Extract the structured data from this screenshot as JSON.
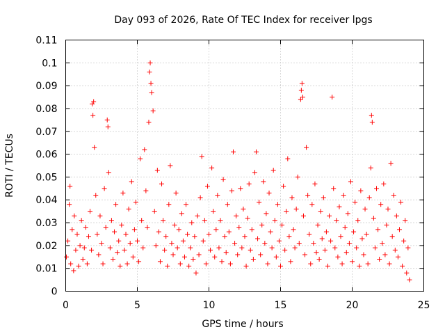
{
  "chart_data": {
    "type": "scatter",
    "title": "Day 093 of 2026, Rate Of TEC Index for receiver lpgs",
    "xlabel": "GPS time / hours",
    "ylabel": "ROTI / TECUs",
    "xlim": [
      0,
      25
    ],
    "ylim": [
      0,
      0.11
    ],
    "x_ticks": [
      {
        "value": 0,
        "label": "0"
      },
      {
        "value": 5,
        "label": "5"
      },
      {
        "value": 10,
        "label": "10"
      },
      {
        "value": 15,
        "label": "15"
      },
      {
        "value": 20,
        "label": "20"
      },
      {
        "value": 25,
        "label": "25"
      }
    ],
    "y_ticks": [
      {
        "value": 0,
        "label": "0"
      },
      {
        "value": 0.01,
        "label": "0.01"
      },
      {
        "value": 0.02,
        "label": "0.02"
      },
      {
        "value": 0.03,
        "label": "0.03"
      },
      {
        "value": 0.04,
        "label": "0.04"
      },
      {
        "value": 0.05,
        "label": "0.05"
      },
      {
        "value": 0.06,
        "label": "0.06"
      },
      {
        "value": 0.07,
        "label": "0.07"
      },
      {
        "value": 0.08,
        "label": "0.08"
      },
      {
        "value": 0.09,
        "label": "0.09"
      },
      {
        "value": 0.1,
        "label": "0.1"
      },
      {
        "value": 0.11,
        "label": "0.11"
      }
    ],
    "grid": true,
    "marker": "+",
    "color": "#ff0000",
    "series": [
      {
        "name": "ROTI",
        "points": [
          [
            0.05,
            0.015
          ],
          [
            0.15,
            0.022
          ],
          [
            0.25,
            0.038
          ],
          [
            0.3,
            0.046
          ],
          [
            0.35,
            0.012
          ],
          [
            0.45,
            0.027
          ],
          [
            0.55,
            0.009
          ],
          [
            0.6,
            0.033
          ],
          [
            0.7,
            0.018
          ],
          [
            0.8,
            0.025
          ],
          [
            0.9,
            0.011
          ],
          [
            1.0,
            0.02
          ],
          [
            1.1,
            0.031
          ],
          [
            1.2,
            0.014
          ],
          [
            1.3,
            0.019
          ],
          [
            1.4,
            0.028
          ],
          [
            1.5,
            0.012
          ],
          [
            1.6,
            0.024
          ],
          [
            1.7,
            0.035
          ],
          [
            1.8,
            0.018
          ],
          [
            1.85,
            0.082
          ],
          [
            1.9,
            0.077
          ],
          [
            1.95,
            0.083
          ],
          [
            2.0,
            0.063
          ],
          [
            2.1,
            0.042
          ],
          [
            2.2,
            0.025
          ],
          [
            2.3,
            0.016
          ],
          [
            2.4,
            0.033
          ],
          [
            2.5,
            0.021
          ],
          [
            2.6,
            0.012
          ],
          [
            2.7,
            0.045
          ],
          [
            2.8,
            0.028
          ],
          [
            2.9,
            0.075
          ],
          [
            2.95,
            0.072
          ],
          [
            3.0,
            0.052
          ],
          [
            3.1,
            0.019
          ],
          [
            3.2,
            0.031
          ],
          [
            3.3,
            0.014
          ],
          [
            3.4,
            0.026
          ],
          [
            3.5,
            0.038
          ],
          [
            3.6,
            0.017
          ],
          [
            3.7,
            0.022
          ],
          [
            3.8,
            0.011
          ],
          [
            3.9,
            0.029
          ],
          [
            4.0,
            0.043
          ],
          [
            4.1,
            0.018
          ],
          [
            4.2,
            0.025
          ],
          [
            4.3,
            0.012
          ],
          [
            4.4,
            0.036
          ],
          [
            4.5,
            0.021
          ],
          [
            4.6,
            0.048
          ],
          [
            4.7,
            0.015
          ],
          [
            4.8,
            0.027
          ],
          [
            4.9,
            0.039
          ],
          [
            5.0,
            0.022
          ],
          [
            5.1,
            0.013
          ],
          [
            5.2,
            0.058
          ],
          [
            5.3,
            0.031
          ],
          [
            5.4,
            0.019
          ],
          [
            5.5,
            0.062
          ],
          [
            5.6,
            0.044
          ],
          [
            5.7,
            0.028
          ],
          [
            5.8,
            0.074
          ],
          [
            5.85,
            0.096
          ],
          [
            5.9,
            0.1
          ],
          [
            5.95,
            0.091
          ],
          [
            6.0,
            0.087
          ],
          [
            6.1,
            0.079
          ],
          [
            6.2,
            0.035
          ],
          [
            6.3,
            0.02
          ],
          [
            6.4,
            0.053
          ],
          [
            6.5,
            0.026
          ],
          [
            6.6,
            0.013
          ],
          [
            6.7,
            0.047
          ],
          [
            6.8,
            0.031
          ],
          [
            6.9,
            0.018
          ],
          [
            7.0,
            0.024
          ],
          [
            7.1,
            0.011
          ],
          [
            7.2,
            0.038
          ],
          [
            7.3,
            0.055
          ],
          [
            7.4,
            0.021
          ],
          [
            7.5,
            0.016
          ],
          [
            7.6,
            0.029
          ],
          [
            7.7,
            0.043
          ],
          [
            7.8,
            0.019
          ],
          [
            7.9,
            0.027
          ],
          [
            8.0,
            0.012
          ],
          [
            8.1,
            0.034
          ],
          [
            8.2,
            0.022
          ],
          [
            8.3,
            0.015
          ],
          [
            8.4,
            0.038
          ],
          [
            8.5,
            0.025
          ],
          [
            8.6,
            0.011
          ],
          [
            8.7,
            0.019
          ],
          [
            8.8,
            0.03
          ],
          [
            8.9,
            0.014
          ],
          [
            9.0,
            0.024
          ],
          [
            9.1,
            0.008
          ],
          [
            9.2,
            0.033
          ],
          [
            9.3,
            0.016
          ],
          [
            9.4,
            0.041
          ],
          [
            9.5,
            0.059
          ],
          [
            9.6,
            0.022
          ],
          [
            9.7,
            0.031
          ],
          [
            9.8,
            0.012
          ],
          [
            9.9,
            0.046
          ],
          [
            10.0,
            0.025
          ],
          [
            10.1,
            0.018
          ],
          [
            10.2,
            0.054
          ],
          [
            10.3,
            0.035
          ],
          [
            10.4,
            0.015
          ],
          [
            10.5,
            0.027
          ],
          [
            10.6,
            0.042
          ],
          [
            10.7,
            0.019
          ],
          [
            10.8,
            0.031
          ],
          [
            10.9,
            0.013
          ],
          [
            11.0,
            0.049
          ],
          [
            11.1,
            0.024
          ],
          [
            11.2,
            0.017
          ],
          [
            11.3,
            0.038
          ],
          [
            11.4,
            0.026
          ],
          [
            11.5,
            0.012
          ],
          [
            11.6,
            0.044
          ],
          [
            11.7,
            0.061
          ],
          [
            11.8,
            0.021
          ],
          [
            11.9,
            0.033
          ],
          [
            12.0,
            0.016
          ],
          [
            12.1,
            0.028
          ],
          [
            12.2,
            0.045
          ],
          [
            12.3,
            0.019
          ],
          [
            12.4,
            0.036
          ],
          [
            12.5,
            0.024
          ],
          [
            12.6,
            0.011
          ],
          [
            12.7,
            0.032
          ],
          [
            12.8,
            0.047
          ],
          [
            12.9,
            0.018
          ],
          [
            13.0,
            0.027
          ],
          [
            13.1,
            0.014
          ],
          [
            13.2,
            0.052
          ],
          [
            13.3,
            0.061
          ],
          [
            13.4,
            0.023
          ],
          [
            13.5,
            0.039
          ],
          [
            13.6,
            0.016
          ],
          [
            13.7,
            0.029
          ],
          [
            13.8,
            0.048
          ],
          [
            13.9,
            0.021
          ],
          [
            14.0,
            0.034
          ],
          [
            14.1,
            0.012
          ],
          [
            14.2,
            0.043
          ],
          [
            14.3,
            0.026
          ],
          [
            14.4,
            0.019
          ],
          [
            14.5,
            0.053
          ],
          [
            14.6,
            0.031
          ],
          [
            14.7,
            0.015
          ],
          [
            14.8,
            0.038
          ],
          [
            14.9,
            0.022
          ],
          [
            15.0,
            0.011
          ],
          [
            15.1,
            0.029
          ],
          [
            15.2,
            0.046
          ],
          [
            15.3,
            0.018
          ],
          [
            15.4,
            0.035
          ],
          [
            15.5,
            0.058
          ],
          [
            15.6,
            0.024
          ],
          [
            15.7,
            0.013
          ],
          [
            15.8,
            0.041
          ],
          [
            15.9,
            0.027
          ],
          [
            16.0,
            0.019
          ],
          [
            16.1,
            0.036
          ],
          [
            16.2,
            0.05
          ],
          [
            16.3,
            0.021
          ],
          [
            16.4,
            0.084
          ],
          [
            16.45,
            0.088
          ],
          [
            16.5,
            0.091
          ],
          [
            16.55,
            0.085
          ],
          [
            16.6,
            0.033
          ],
          [
            16.7,
            0.016
          ],
          [
            16.8,
            0.063
          ],
          [
            16.9,
            0.042
          ],
          [
            17.0,
            0.025
          ],
          [
            17.1,
            0.012
          ],
          [
            17.2,
            0.038
          ],
          [
            17.3,
            0.021
          ],
          [
            17.4,
            0.047
          ],
          [
            17.5,
            0.017
          ],
          [
            17.6,
            0.029
          ],
          [
            17.7,
            0.014
          ],
          [
            17.8,
            0.035
          ],
          [
            17.9,
            0.023
          ],
          [
            18.0,
            0.041
          ],
          [
            18.1,
            0.018
          ],
          [
            18.2,
            0.026
          ],
          [
            18.3,
            0.011
          ],
          [
            18.4,
            0.033
          ],
          [
            18.5,
            0.022
          ],
          [
            18.6,
            0.085
          ],
          [
            18.7,
            0.045
          ],
          [
            18.8,
            0.019
          ],
          [
            18.9,
            0.031
          ],
          [
            19.0,
            0.015
          ],
          [
            19.1,
            0.037
          ],
          [
            19.2,
            0.024
          ],
          [
            19.3,
            0.012
          ],
          [
            19.4,
            0.042
          ],
          [
            19.5,
            0.028
          ],
          [
            19.6,
            0.017
          ],
          [
            19.7,
            0.034
          ],
          [
            19.8,
            0.021
          ],
          [
            19.9,
            0.048
          ],
          [
            20.0,
            0.013
          ],
          [
            20.1,
            0.026
          ],
          [
            20.2,
            0.039
          ],
          [
            20.3,
            0.019
          ],
          [
            20.4,
            0.031
          ],
          [
            20.5,
            0.011
          ],
          [
            20.6,
            0.044
          ],
          [
            20.7,
            0.023
          ],
          [
            20.8,
            0.016
          ],
          [
            20.9,
            0.036
          ],
          [
            21.0,
            0.025
          ],
          [
            21.1,
            0.012
          ],
          [
            21.2,
            0.041
          ],
          [
            21.3,
            0.054
          ],
          [
            21.35,
            0.077
          ],
          [
            21.4,
            0.074
          ],
          [
            21.5,
            0.032
          ],
          [
            21.6,
            0.019
          ],
          [
            21.7,
            0.045
          ],
          [
            21.8,
            0.027
          ],
          [
            21.9,
            0.014
          ],
          [
            22.0,
            0.038
          ],
          [
            22.1,
            0.021
          ],
          [
            22.2,
            0.047
          ],
          [
            22.3,
            0.016
          ],
          [
            22.4,
            0.029
          ],
          [
            22.5,
            0.036
          ],
          [
            22.6,
            0.012
          ],
          [
            22.7,
            0.056
          ],
          [
            22.8,
            0.024
          ],
          [
            22.9,
            0.042
          ],
          [
            23.0,
            0.018
          ],
          [
            23.1,
            0.033
          ],
          [
            23.2,
            0.015
          ],
          [
            23.3,
            0.027
          ],
          [
            23.4,
            0.039
          ],
          [
            23.5,
            0.011
          ],
          [
            23.6,
            0.022
          ],
          [
            23.7,
            0.031
          ],
          [
            23.8,
            0.008
          ],
          [
            23.9,
            0.019
          ],
          [
            24.0,
            0.005
          ]
        ]
      }
    ]
  }
}
